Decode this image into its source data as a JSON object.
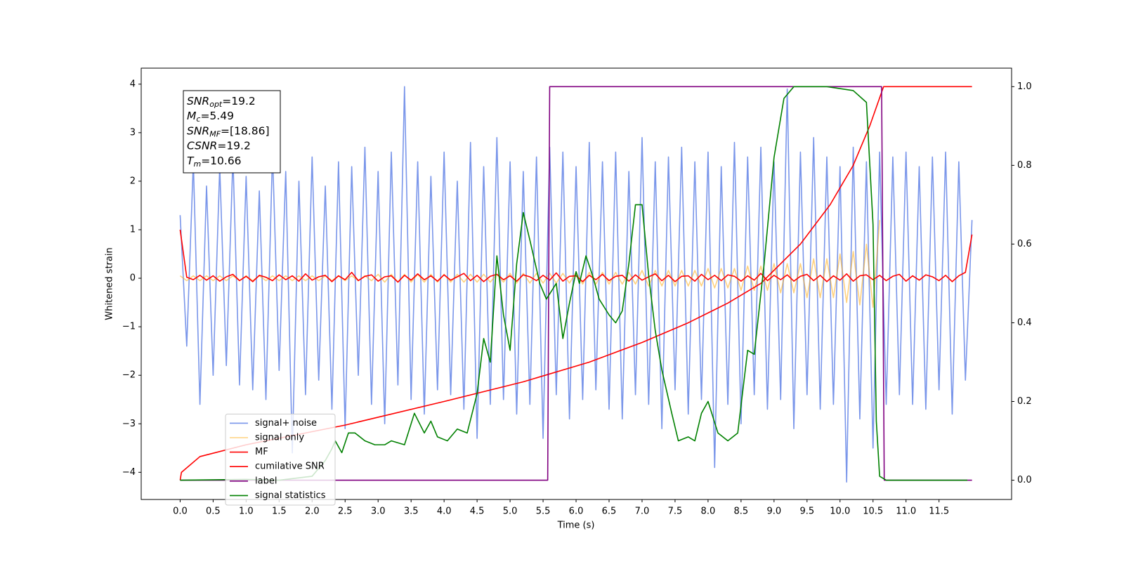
{
  "chart_data": {
    "type": "line",
    "xlabel": "Time (s)",
    "ylabel": "Whitened strain",
    "legend_loc": "lower left",
    "grid": false,
    "xlim": [
      -0.59,
      12.6
    ],
    "ylim": [
      -4.56,
      4.33
    ],
    "y2lim": [
      -0.049,
      1.047
    ],
    "xticks": [
      {
        "value": 0,
        "label": "0.0"
      },
      0.5,
      {
        "value": 1,
        "label": "1.0"
      },
      1.5,
      {
        "value": 2,
        "label": "2.0"
      },
      2.5,
      {
        "value": 3,
        "label": "3.0"
      },
      3.5,
      {
        "value": 4,
        "label": "4.0"
      },
      4.5,
      {
        "value": 5,
        "label": "5.0"
      },
      5.5,
      {
        "value": 6,
        "label": "6.0"
      },
      6.5,
      {
        "value": 7,
        "label": "7.0"
      },
      7.5,
      {
        "value": 8,
        "label": "8.0"
      },
      8.5,
      {
        "value": 9,
        "label": "9.0"
      },
      9.5,
      {
        "value": 10,
        "label": "10.0"
      },
      10.5,
      {
        "value": 11,
        "label": "11.0"
      },
      11.5
    ],
    "yticks": [
      {
        "value": -4,
        "label": "−4"
      },
      {
        "value": -3,
        "label": "−3"
      },
      {
        "value": -2,
        "label": "−2"
      },
      {
        "value": -1,
        "label": "−1"
      },
      0,
      1,
      2,
      3,
      4
    ],
    "y2ticks": [
      {
        "value": 0,
        "label": "0.0"
      },
      0.2,
      0.4,
      0.6,
      0.8,
      {
        "value": 1,
        "label": "1.0"
      }
    ],
    "annotation": [
      {
        "text": "SNR",
        "sub": "opt",
        "suffix": "=19.2"
      },
      {
        "text": "M",
        "sub": "c",
        "suffix": "=5.49"
      },
      {
        "text": "SNR",
        "sub": "MF",
        "suffix": "=[18.86]"
      },
      {
        "text": "CSNR",
        "suffix": "=19.2"
      },
      {
        "text": "T",
        "sub": "m",
        "suffix": "=10.66"
      }
    ],
    "x": [
      0,
      0.1,
      0.2,
      0.3,
      0.4,
      0.5,
      0.6,
      0.7,
      0.8,
      0.9,
      1,
      1.1,
      1.2,
      1.3,
      1.4,
      1.5,
      1.6,
      1.7,
      1.8,
      1.9,
      2,
      2.1,
      2.2,
      2.3,
      2.4,
      2.5,
      2.6,
      2.7,
      2.8,
      2.9,
      3,
      3.1,
      3.2,
      3.3,
      3.4,
      3.5,
      3.6,
      3.7,
      3.8,
      3.9,
      4,
      4.1,
      4.2,
      4.3,
      4.4,
      4.5,
      4.6,
      4.7,
      4.8,
      4.9,
      5,
      5.1,
      5.2,
      5.3,
      5.4,
      5.5,
      5.6,
      5.7,
      5.8,
      5.9,
      6,
      6.1,
      6.2,
      6.3,
      6.4,
      6.5,
      6.6,
      6.7,
      6.8,
      6.9,
      7,
      7.1,
      7.2,
      7.3,
      7.4,
      7.5,
      7.6,
      7.7,
      7.8,
      7.9,
      8,
      8.1,
      8.2,
      8.3,
      8.4,
      8.5,
      8.6,
      8.7,
      8.8,
      8.9,
      9,
      9.1,
      9.2,
      9.3,
      9.4,
      9.5,
      9.6,
      9.7,
      9.8,
      9.9,
      10,
      10.1,
      10.2,
      10.3,
      10.4,
      10.5,
      10.6,
      10.7,
      10.8,
      10.9,
      11,
      11.1,
      11.2,
      11.3,
      11.4,
      11.5,
      11.6,
      11.7,
      11.8,
      11.9,
      12
    ],
    "series": [
      {
        "name": "signal+ noise",
        "color": "royalblue",
        "opacity": 0.7,
        "values": [
          1.3,
          -1.4,
          2.4,
          -2.6,
          1.9,
          -2.0,
          2.3,
          -1.8,
          2.5,
          -2.2,
          2.1,
          -2.3,
          1.8,
          -2.5,
          2.6,
          -1.9,
          2.2,
          -3.6,
          2.0,
          -2.4,
          2.5,
          -2.1,
          1.9,
          -2.7,
          2.4,
          -3.1,
          2.3,
          -2.0,
          2.7,
          -2.6,
          2.2,
          -3.0,
          2.6,
          -2.2,
          3.95,
          -2.5,
          2.4,
          -2.8,
          2.1,
          -2.3,
          2.6,
          -2.4,
          2.0,
          -2.7,
          2.8,
          -3.3,
          2.3,
          -2.6,
          2.9,
          -2.5,
          2.4,
          -2.8,
          2.2,
          -2.6,
          2.5,
          -3.3,
          2.7,
          -2.4,
          2.6,
          -2.9,
          2.3,
          -2.5,
          2.8,
          -2.3,
          2.4,
          -2.7,
          2.6,
          -2.9,
          2.2,
          -2.4,
          2.9,
          -2.6,
          2.4,
          -3.1,
          2.5,
          -2.3,
          2.7,
          -2.8,
          2.4,
          -2.5,
          2.6,
          -3.9,
          2.3,
          -2.6,
          2.8,
          -3.0,
          2.5,
          -2.4,
          2.7,
          -2.7,
          2.4,
          -2.5,
          3.9,
          -3.1,
          2.6,
          -2.4,
          2.9,
          -2.7,
          2.5,
          -2.6,
          2.3,
          -4.2,
          2.7,
          -2.9,
          2.4,
          -3.5,
          2.6,
          -2.6,
          2.5,
          -2.4,
          2.6,
          -2.6,
          2.3,
          -2.7,
          2.5,
          -2.3,
          2.6,
          -2.8,
          2.4,
          -2.1,
          1.2
        ]
      },
      {
        "name": "signal only",
        "color": "orange",
        "opacity": 0.5,
        "values": [
          0.05,
          -0.05,
          0.05,
          -0.05,
          0.05,
          -0.05,
          0.05,
          -0.05,
          0.05,
          -0.05,
          0.05,
          -0.05,
          0.05,
          -0.05,
          0.05,
          -0.05,
          0.05,
          -0.05,
          0.05,
          -0.05,
          0.05,
          -0.05,
          0.05,
          -0.05,
          0.05,
          -0.05,
          0.05,
          -0.05,
          0.05,
          -0.05,
          0.08,
          -0.08,
          0.08,
          -0.08,
          0.08,
          -0.08,
          0.08,
          -0.08,
          0.08,
          -0.08,
          0.08,
          -0.08,
          0.08,
          -0.08,
          0.08,
          -0.08,
          0.08,
          -0.08,
          0.08,
          -0.08,
          0.1,
          -0.1,
          0.1,
          -0.1,
          0.1,
          -0.1,
          0.1,
          -0.1,
          0.1,
          -0.1,
          0.12,
          -0.12,
          0.12,
          -0.12,
          0.12,
          -0.12,
          0.12,
          -0.12,
          0.12,
          -0.12,
          0.16,
          -0.16,
          0.16,
          -0.16,
          0.16,
          -0.16,
          0.16,
          -0.16,
          0.16,
          -0.16,
          0.2,
          -0.2,
          0.2,
          -0.2,
          0.2,
          -0.25,
          0.25,
          -0.25,
          0.25,
          -0.25,
          0.3,
          -0.3,
          0.3,
          -0.3,
          0.3,
          -0.4,
          0.4,
          -0.4,
          0.4,
          -0.4,
          0.5,
          -0.5,
          0.55,
          -0.55,
          0.7,
          -0.6,
          1.2,
          null,
          null,
          null,
          null,
          null,
          null,
          null,
          null,
          null,
          null,
          null,
          null,
          null,
          null
        ]
      },
      {
        "name": "MF",
        "color": "red",
        "opacity": 1,
        "values": [
          1.0,
          0.02,
          -0.03,
          0.06,
          -0.04,
          0.05,
          -0.06,
          0.03,
          0.08,
          -0.05,
          0.04,
          -0.07,
          0.06,
          0.02,
          -0.05,
          0.07,
          -0.03,
          0.05,
          -0.06,
          0.09,
          -0.04,
          0.03,
          0.06,
          -0.07,
          0.05,
          -0.03,
          0.12,
          -0.05,
          0.04,
          0.07,
          -0.06,
          0.03,
          0.05,
          -0.08,
          0.06,
          -0.04,
          0.09,
          -0.03,
          0.05,
          -0.06,
          0.07,
          -0.04,
          0.03,
          0.1,
          -0.05,
          0.06,
          -0.07,
          0.04,
          0.08,
          -0.03,
          0.05,
          -0.06,
          0.07,
          0.03,
          -0.05,
          0.06,
          -0.04,
          0.11,
          -0.06,
          0.04,
          0.05,
          -0.07,
          0.06,
          -0.03,
          0.08,
          -0.05,
          0.04,
          0.06,
          -0.06,
          0.07,
          -0.04,
          0.03,
          0.09,
          -0.05,
          0.06,
          -0.07,
          0.04,
          0.05,
          -0.06,
          0.08,
          -0.03,
          0.06,
          -0.05,
          0.07,
          0.04,
          -0.06,
          0.05,
          -0.04,
          0.1,
          -0.05,
          0.06,
          -0.03,
          0.07,
          -0.06,
          0.04,
          0.08,
          -0.05,
          0.06,
          -0.07,
          0.05,
          -0.04,
          0.09,
          -0.06,
          0.05,
          0.07,
          -0.03,
          0.06,
          -0.05,
          0.04,
          0.08,
          -0.06,
          0.05,
          -0.04,
          0.07,
          0.03,
          -0.05,
          0.06,
          -0.07,
          0.05,
          0.12,
          0.9
        ]
      },
      {
        "name": "cumilative SNR",
        "color": "red",
        "opacity": 1,
        "axis": "y2",
        "x": [
          0,
          0.02,
          0.3,
          1,
          2.5,
          4,
          5.2,
          6.2,
          7,
          7.7,
          8.3,
          8.8,
          9.4,
          9.85,
          10.2,
          10.45,
          10.66,
          12
        ],
        "values": [
          0,
          0.02,
          0.06,
          0.09,
          0.14,
          0.2,
          0.25,
          0.3,
          0.35,
          0.4,
          0.45,
          0.5,
          0.6,
          0.7,
          0.8,
          0.9,
          1,
          1
        ]
      },
      {
        "name": "label",
        "color": "purple",
        "opacity": 1,
        "axis": "y2",
        "x": [
          0,
          5.57,
          5.6,
          10.63,
          10.67,
          12
        ],
        "values": [
          0,
          0,
          1,
          1,
          0,
          0
        ]
      },
      {
        "name": "signal statistics",
        "color": "green",
        "opacity": 1,
        "axis": "y2",
        "x": [
          0,
          1,
          1.5,
          2,
          2.2,
          2.3,
          2.35,
          2.45,
          2.55,
          2.65,
          2.8,
          2.95,
          3.1,
          3.2,
          3.4,
          3.55,
          3.7,
          3.8,
          3.9,
          4.05,
          4.2,
          4.35,
          4.5,
          4.6,
          4.7,
          4.8,
          4.9,
          5,
          5.1,
          5.2,
          5.3,
          5.45,
          5.55,
          5.7,
          5.8,
          5.9,
          6,
          6.05,
          6.15,
          6.25,
          6.35,
          6.5,
          6.6,
          6.7,
          6.8,
          6.9,
          7,
          7.1,
          7.2,
          7.3,
          7.45,
          7.55,
          7.7,
          7.8,
          7.9,
          8,
          8.15,
          8.3,
          8.45,
          8.6,
          8.7,
          8.85,
          9,
          9.15,
          9.3,
          9.8,
          10.2,
          10.4,
          10.5,
          10.55,
          10.6,
          10.7,
          11.93
        ],
        "values": [
          0,
          0.002,
          0,
          0.01,
          0.05,
          0.08,
          0.1,
          0.07,
          0.12,
          0.12,
          0.1,
          0.09,
          0.09,
          0.1,
          0.09,
          0.17,
          0.12,
          0.15,
          0.11,
          0.1,
          0.13,
          0.12,
          0.22,
          0.36,
          0.3,
          0.57,
          0.42,
          0.33,
          0.55,
          0.68,
          0.61,
          0.5,
          0.46,
          0.5,
          0.36,
          0.45,
          0.53,
          0.5,
          0.57,
          0.52,
          0.46,
          0.42,
          0.4,
          0.43,
          0.55,
          0.7,
          0.7,
          0.52,
          0.38,
          0.28,
          0.17,
          0.1,
          0.11,
          0.1,
          0.17,
          0.2,
          0.12,
          0.1,
          0.12,
          0.33,
          0.32,
          0.55,
          0.82,
          0.97,
          1,
          1,
          0.99,
          0.96,
          0.65,
          0.15,
          0.01,
          0,
          0
        ]
      }
    ]
  }
}
